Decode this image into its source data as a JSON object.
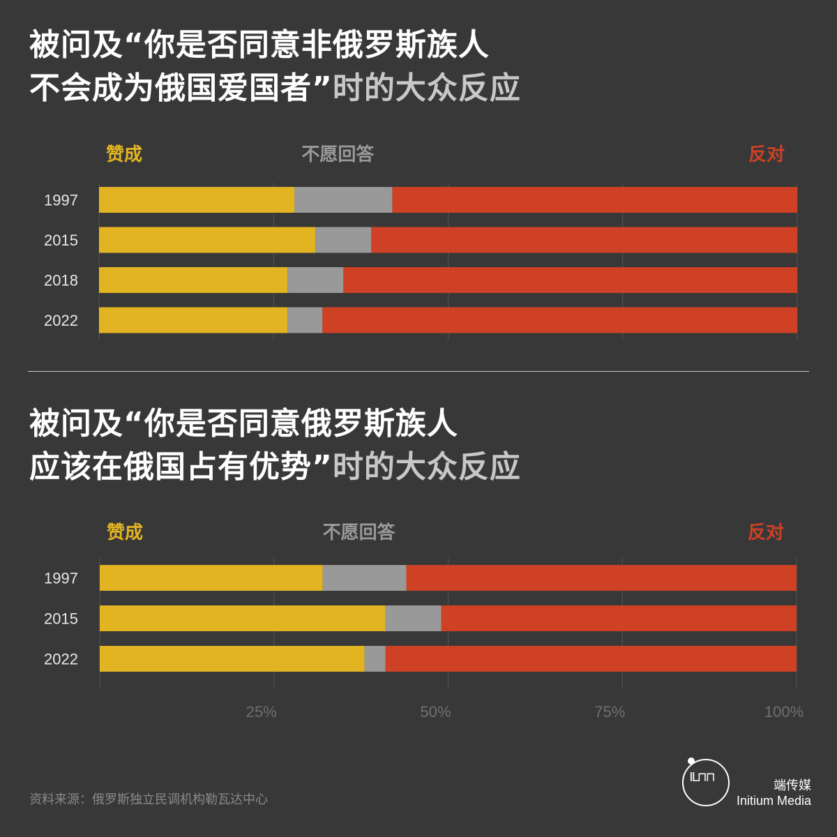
{
  "charts": [
    {
      "title_emph": "被问及“你是否同意非俄罗斯族人",
      "title_emph_2": "不会成为俄国爱国者”",
      "title_rest": "时的大众反应"
    },
    {
      "title_emph": "被问及“你是否同意俄罗斯族人",
      "title_emph_2": "应该在俄国占有优势”",
      "title_rest": "时的大众反应"
    }
  ],
  "legend": {
    "agree": "赞成",
    "no_answer": "不愿回答",
    "disagree": "反对"
  },
  "colors": {
    "agree": "#e3b422",
    "no_answer": "#999999",
    "disagree": "#cf4125",
    "background": "#383838"
  },
  "chart_data": [
    {
      "type": "bar",
      "stacked": true,
      "orientation": "horizontal",
      "title": "被问及“你是否同意非俄罗斯族人不会成为俄国爱国者”时的大众反应",
      "categories": [
        "1997",
        "2015",
        "2018",
        "2022"
      ],
      "series": [
        {
          "name": "赞成",
          "values": [
            28,
            31,
            27,
            27
          ]
        },
        {
          "name": "不愿回答",
          "values": [
            14,
            8,
            8,
            5
          ]
        },
        {
          "name": "反对",
          "values": [
            58,
            61,
            65,
            68
          ]
        }
      ],
      "xlim": [
        0,
        100
      ],
      "legend_position": "top"
    },
    {
      "type": "bar",
      "stacked": true,
      "orientation": "horizontal",
      "title": "被问及“你是否同意俄罗斯族人应该在俄国占有优势”时的大众反应",
      "categories": [
        "1997",
        "2015",
        "2022"
      ],
      "series": [
        {
          "name": "赞成",
          "values": [
            32,
            41,
            38
          ]
        },
        {
          "name": "不愿回答",
          "values": [
            12,
            8,
            3
          ]
        },
        {
          "name": "反对",
          "values": [
            56,
            51,
            59
          ]
        }
      ],
      "xlim": [
        0,
        100
      ],
      "xticks": [
        "25%",
        "50%",
        "75%",
        "100%"
      ],
      "legend_position": "top"
    }
  ],
  "footer": {
    "source": "资料来源：俄罗斯独立民调机构勒瓦达中心",
    "brand_cn": "端传媒",
    "brand_en": "Initium Media",
    "logo_icon": "initium-logo-icon"
  }
}
